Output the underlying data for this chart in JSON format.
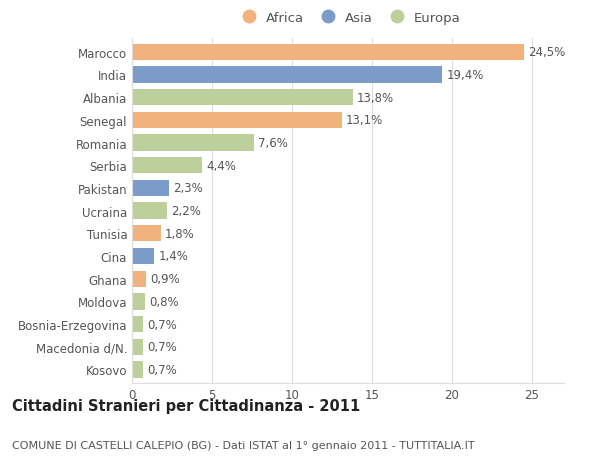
{
  "countries": [
    "Marocco",
    "India",
    "Albania",
    "Senegal",
    "Romania",
    "Serbia",
    "Pakistan",
    "Ucraina",
    "Tunisia",
    "Cina",
    "Ghana",
    "Moldova",
    "Bosnia-Erzegovina",
    "Macedonia d/N.",
    "Kosovo"
  ],
  "values": [
    24.5,
    19.4,
    13.8,
    13.1,
    7.6,
    4.4,
    2.3,
    2.2,
    1.8,
    1.4,
    0.9,
    0.8,
    0.7,
    0.7,
    0.7
  ],
  "labels": [
    "24,5%",
    "19,4%",
    "13,8%",
    "13,1%",
    "7,6%",
    "4,4%",
    "2,3%",
    "2,2%",
    "1,8%",
    "1,4%",
    "0,9%",
    "0,8%",
    "0,7%",
    "0,7%",
    "0,7%"
  ],
  "continents": [
    "Africa",
    "Asia",
    "Europa",
    "Africa",
    "Europa",
    "Europa",
    "Asia",
    "Europa",
    "Africa",
    "Asia",
    "Africa",
    "Europa",
    "Europa",
    "Europa",
    "Europa"
  ],
  "colors": {
    "Africa": "#F2B27E",
    "Asia": "#7B9CC8",
    "Europa": "#BDCF9A"
  },
  "xlim": [
    0,
    27
  ],
  "xticks": [
    0,
    5,
    10,
    15,
    20,
    25
  ],
  "title": "Cittadini Stranieri per Cittadinanza - 2011",
  "subtitle": "COMUNE DI CASTELLI CALEPIO (BG) - Dati ISTAT al 1° gennaio 2011 - TUTTITALIA.IT",
  "background_color": "#ffffff",
  "bar_height": 0.72,
  "label_fontsize": 8.5,
  "title_fontsize": 10.5,
  "subtitle_fontsize": 8.0,
  "ytick_fontsize": 8.5,
  "xtick_fontsize": 8.5,
  "legend_labels": [
    "Africa",
    "Asia",
    "Europa"
  ],
  "grid_color": "#dddddd",
  "text_color": "#555555",
  "label_color": "#555555"
}
